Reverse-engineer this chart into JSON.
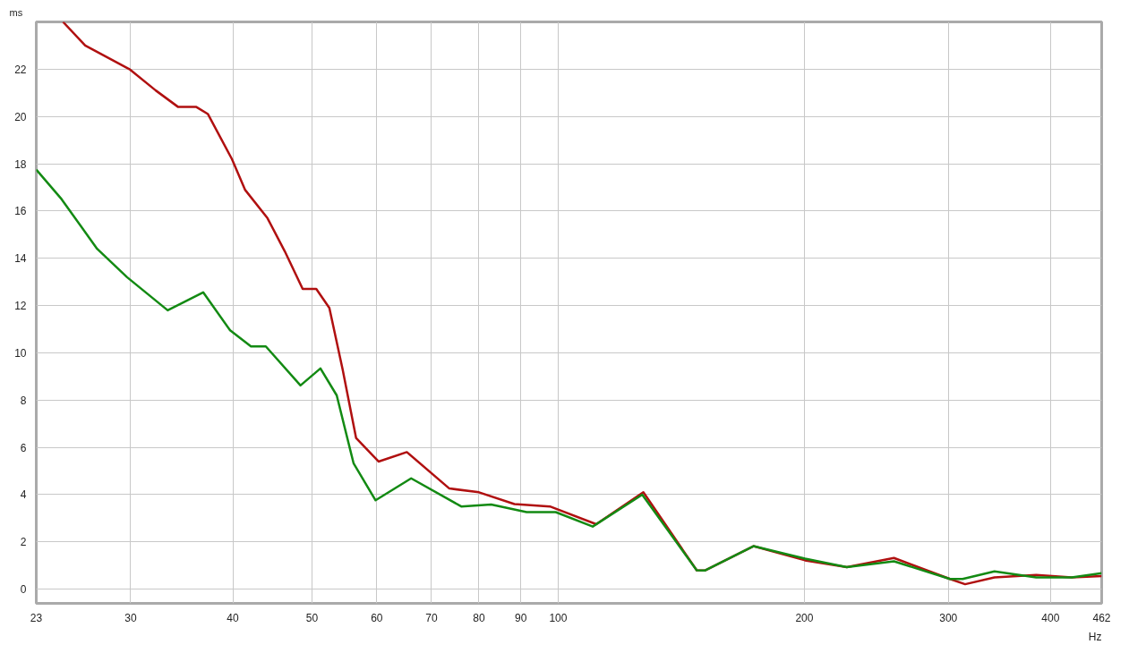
{
  "chart_data": {
    "type": "line",
    "xlabel": "Hz",
    "ylabel": "ms",
    "log": "x",
    "xlim": [
      23,
      462
    ],
    "ylim": [
      -0.6,
      24
    ],
    "xticks": [
      23,
      30,
      40,
      50,
      60,
      70,
      80,
      90,
      100,
      200,
      300,
      400,
      462
    ],
    "yticks": [
      0,
      2,
      4,
      6,
      8,
      10,
      12,
      14,
      16,
      18,
      20,
      22
    ],
    "grid": true,
    "marker": "none",
    "line_style": "solid",
    "series": [
      {
        "color": "#b01010",
        "x": [
          24.8,
          26.4,
          29.9,
          32.2,
          34.3,
          36.1,
          37.3,
          39.9,
          41.4,
          44.1,
          46.3,
          48.7,
          50.6,
          52.5,
          54.5,
          56.6,
          60.3,
          65.3,
          73.6,
          80.0,
          88.4,
          97.7,
          111.3,
          127.1,
          147.7,
          151.1,
          173.3,
          200.4,
          225.4,
          257.4,
          301.4,
          314.5,
          341.6,
          384.2,
          424.6,
          462
        ],
        "values": [
          24.0,
          23.0,
          22.0,
          21.1,
          20.4,
          20.4,
          20.1,
          18.2,
          16.9,
          15.7,
          14.3,
          12.7,
          12.7,
          11.9,
          9.3,
          6.4,
          5.4,
          5.8,
          4.26,
          4.1,
          3.6,
          3.5,
          2.75,
          4.1,
          0.8,
          0.79,
          1.82,
          1.22,
          0.93,
          1.32,
          0.43,
          0.21,
          0.5,
          0.6,
          0.5,
          0.55
        ]
      },
      {
        "color": "#138a13",
        "x": [
          23,
          24.7,
          27.3,
          29.7,
          33.3,
          36.8,
          39.7,
          42.1,
          43.9,
          48.4,
          51.2,
          53.6,
          56.2,
          59.8,
          66.1,
          76.1,
          82.8,
          91.5,
          99.3,
          110.2,
          126.7,
          147.7,
          151.1,
          173.3,
          200.4,
          225.4,
          257.4,
          301.4,
          312.3,
          341.6,
          384.2,
          424.6,
          462
        ],
        "values": [
          17.75,
          16.5,
          14.4,
          13.2,
          11.8,
          12.56,
          10.95,
          10.27,
          10.27,
          8.62,
          9.34,
          8.2,
          5.33,
          3.76,
          4.69,
          3.5,
          3.58,
          3.26,
          3.26,
          2.65,
          4.0,
          0.8,
          0.79,
          1.82,
          1.29,
          0.93,
          1.18,
          0.43,
          0.43,
          0.75,
          0.5,
          0.5,
          0.68
        ]
      }
    ]
  }
}
